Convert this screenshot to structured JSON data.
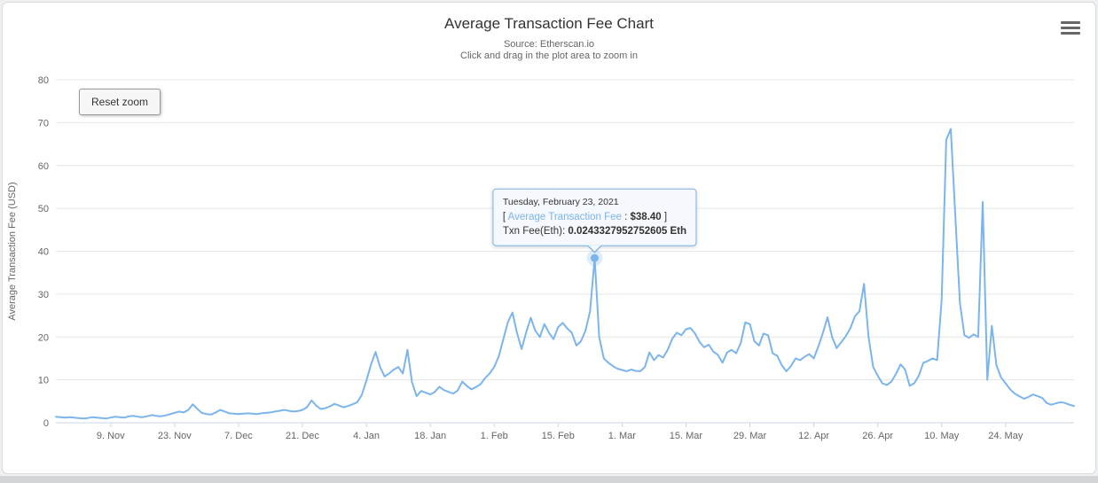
{
  "chart_data": {
    "type": "line",
    "title": "Average Transaction Fee Chart",
    "subtitle_lines": [
      "Source: Etherscan.io",
      "Click and drag in the plot area to zoom in"
    ],
    "ylabel": "Average Transaction Fee (USD)",
    "xlabel": "",
    "ylim": [
      0,
      80
    ],
    "yticks": [
      0,
      10,
      20,
      30,
      40,
      50,
      60,
      70,
      80
    ],
    "grid": true,
    "legend": false,
    "xmin": "2020-10-28",
    "xmax": "2021-06-08",
    "xticks": [
      {
        "label": "9. Nov",
        "date": "2020-11-09"
      },
      {
        "label": "23. Nov",
        "date": "2020-11-23"
      },
      {
        "label": "7. Dec",
        "date": "2020-12-07"
      },
      {
        "label": "21. Dec",
        "date": "2020-12-21"
      },
      {
        "label": "4. Jan",
        "date": "2021-01-04"
      },
      {
        "label": "18. Jan",
        "date": "2021-01-18"
      },
      {
        "label": "1. Feb",
        "date": "2021-02-01"
      },
      {
        "label": "15. Feb",
        "date": "2021-02-15"
      },
      {
        "label": "1. Mar",
        "date": "2021-03-01"
      },
      {
        "label": "15. Mar",
        "date": "2021-03-15"
      },
      {
        "label": "29. Mar",
        "date": "2021-03-29"
      },
      {
        "label": "12. Apr",
        "date": "2021-04-12"
      },
      {
        "label": "26. Apr",
        "date": "2021-04-26"
      },
      {
        "label": "10. May",
        "date": "2021-05-10"
      },
      {
        "label": "24. May",
        "date": "2021-05-24"
      }
    ],
    "colors": {
      "grid": "#e6e6e6",
      "axis_line": "#ccd6eb",
      "axis_label": "#666666",
      "title": "#333333"
    },
    "series": [
      {
        "name": "Average Transaction Fee",
        "color": "#7cb5ec",
        "start_date": "2020-10-28",
        "interval": "1d",
        "values": [
          1.4,
          1.3,
          1.2,
          1.3,
          1.2,
          1.1,
          1.0,
          1.1,
          1.3,
          1.2,
          1.1,
          1.0,
          1.2,
          1.4,
          1.3,
          1.2,
          1.5,
          1.6,
          1.4,
          1.3,
          1.5,
          1.8,
          1.6,
          1.5,
          1.7,
          2.0,
          2.3,
          2.6,
          2.4,
          3.0,
          4.3,
          3.2,
          2.3,
          2.0,
          1.9,
          2.4,
          3.0,
          2.6,
          2.2,
          2.1,
          2.0,
          2.1,
          2.2,
          2.1,
          2.0,
          2.2,
          2.3,
          2.4,
          2.6,
          2.8,
          3.0,
          2.8,
          2.6,
          2.7,
          3.0,
          3.6,
          5.2,
          4.0,
          3.2,
          3.4,
          3.8,
          4.4,
          4.0,
          3.6,
          3.9,
          4.3,
          4.8,
          6.5,
          9.8,
          13.5,
          16.5,
          13.0,
          10.8,
          11.5,
          12.4,
          13.0,
          11.5,
          17.0,
          9.5,
          6.2,
          7.4,
          7.0,
          6.6,
          7.2,
          8.4,
          7.6,
          7.2,
          6.8,
          7.5,
          9.6,
          8.6,
          7.8,
          8.3,
          9.0,
          10.4,
          11.5,
          13.0,
          15.5,
          19.5,
          23.5,
          25.7,
          21.0,
          17.2,
          21.0,
          24.5,
          21.5,
          20.0,
          23.0,
          21.0,
          19.5,
          22.3,
          23.3,
          22.0,
          21.0,
          18.0,
          19.0,
          21.5,
          26.0,
          38.4,
          20.0,
          15.0,
          14.0,
          13.2,
          12.6,
          12.3,
          12.0,
          12.4,
          12.1,
          12.0,
          13.0,
          16.4,
          14.6,
          15.8,
          15.2,
          17.0,
          19.6,
          21.0,
          20.4,
          21.8,
          22.1,
          20.8,
          18.8,
          17.6,
          18.2,
          16.6,
          15.8,
          14.0,
          16.4,
          17.0,
          16.2,
          18.6,
          23.4,
          23.0,
          19.0,
          18.0,
          20.8,
          20.4,
          16.2,
          15.6,
          13.4,
          12.0,
          13.2,
          15.0,
          14.6,
          15.4,
          16.0,
          15.0,
          17.8,
          21.0,
          24.6,
          20.0,
          17.4,
          18.8,
          20.2,
          22.0,
          24.8,
          26.0,
          32.4,
          20.0,
          13.0,
          11.0,
          9.2,
          8.8,
          9.6,
          11.4,
          13.6,
          12.4,
          8.6,
          9.2,
          11.0,
          14.0,
          14.4,
          15.0,
          14.6,
          28.5,
          66.0,
          68.5,
          48.0,
          28.0,
          20.4,
          19.8,
          20.6,
          20.0,
          51.5,
          10.0,
          22.6,
          13.4,
          10.6,
          9.2,
          7.8,
          6.8,
          6.2,
          5.6,
          6.0,
          6.6,
          6.2,
          5.8,
          4.6,
          4.2,
          4.5,
          4.8,
          4.6,
          4.2,
          3.9
        ]
      }
    ]
  },
  "controls": {
    "reset_zoom": "Reset zoom",
    "menu_icon": "hamburger-icon"
  },
  "tooltip": {
    "date": "Tuesday, February 23, 2021",
    "open": "[ ",
    "series_label": "Average Transaction Fee",
    "sep": " : ",
    "value": "$38.40",
    "close": " ]",
    "eth_label": "Txn Fee(Eth): ",
    "eth_value": "0.0243327952752605 Eth",
    "marker_index": 118
  }
}
